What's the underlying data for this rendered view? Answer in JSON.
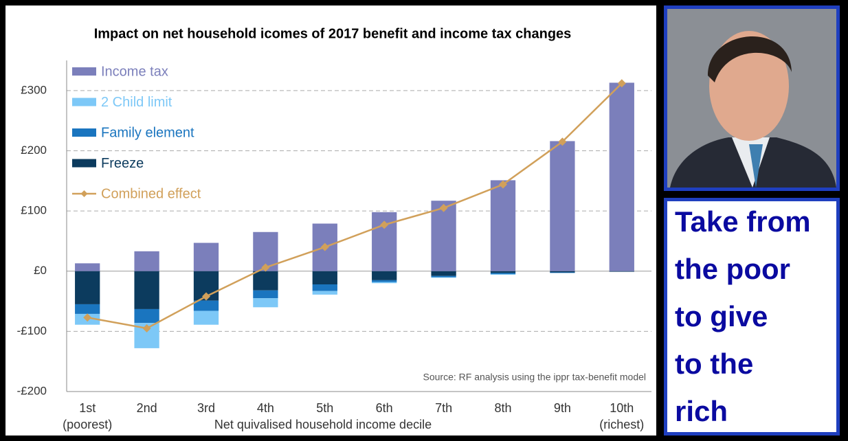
{
  "chart_data": {
    "type": "stacked_bar_line",
    "title": "Impact on net household icomes of 2017 benefit and income tax changes",
    "x_label": "Net quivalised household income decile",
    "categories": [
      "1st",
      "2nd",
      "3rd",
      "4th",
      "5th",
      "6th",
      "7th",
      "8th",
      "9th",
      "10th"
    ],
    "x_annotations": [
      "(poorest)",
      "(richest)"
    ],
    "source": "Source: RF analysis using the ippr tax-benefit model",
    "ylim": [
      -200,
      350
    ],
    "yticks": [
      {
        "value": -200,
        "label": "-£200"
      },
      {
        "value": -100,
        "label": "-£100"
      },
      {
        "value": 0,
        "label": "£0"
      },
      {
        "value": 100,
        "label": "£100"
      },
      {
        "value": 200,
        "label": "£200"
      },
      {
        "value": 300,
        "label": "£300"
      }
    ],
    "grid": true,
    "legend": "top-left",
    "series": [
      {
        "name": "Income tax",
        "color": "#7b7fbb",
        "kind": "bar",
        "values": [
          13,
          33,
          47,
          65,
          79,
          98,
          117,
          151,
          216,
          313
        ]
      },
      {
        "name": "2 Child limit",
        "color": "#7dc8f7",
        "kind": "bar",
        "values": [
          -18,
          -42,
          -23,
          -15,
          -6,
          -2,
          -1,
          -1,
          0,
          0
        ]
      },
      {
        "name": "Family element",
        "color": "#1a75bf",
        "kind": "bar",
        "values": [
          -16,
          -23,
          -17,
          -13,
          -11,
          -3,
          -2,
          -2,
          -1,
          0
        ]
      },
      {
        "name": "Freeze",
        "color": "#0c3b5e",
        "kind": "bar",
        "values": [
          -55,
          -63,
          -49,
          -32,
          -22,
          -15,
          -8,
          -3,
          -2,
          -1
        ]
      },
      {
        "name": "Combined effect",
        "color": "#d1a05a",
        "kind": "line",
        "values": [
          -77,
          -95,
          -42,
          6,
          40,
          77,
          105,
          144,
          215,
          312
        ]
      }
    ]
  },
  "side_panel": {
    "caption_lines": [
      "Take from",
      "the poor",
      "to give",
      "to the",
      "rich"
    ]
  }
}
